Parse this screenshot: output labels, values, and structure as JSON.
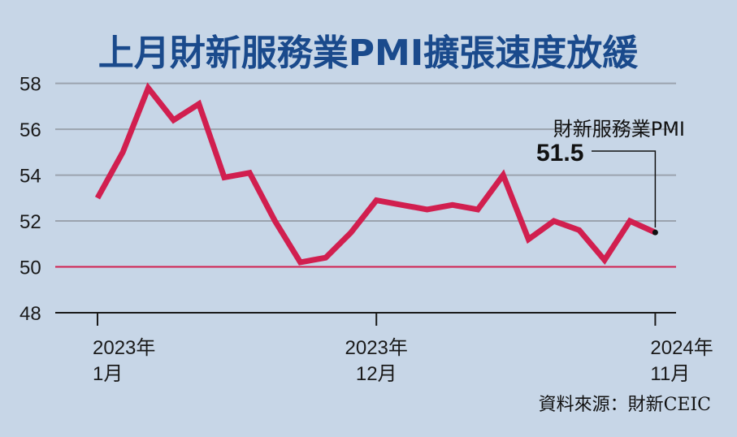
{
  "chart_data": {
    "type": "line",
    "title": "上月財新服務業PMI擴張速度放緩",
    "source": "資料來源：財新CEIC",
    "ylim": [
      48,
      59
    ],
    "yticks": [
      48,
      50,
      52,
      54,
      56,
      58
    ],
    "grid": true,
    "reference_line": 50,
    "x_tick_labels": [
      {
        "index": 0,
        "line1": "2023年",
        "line2": "1月"
      },
      {
        "index": 11,
        "line1": "2023年",
        "line2": "12月"
      },
      {
        "index": 22,
        "line1": "2024年",
        "line2": "11月"
      }
    ],
    "series": [
      {
        "name": "財新服務業PMI",
        "values": [
          53.0,
          55.0,
          57.8,
          56.4,
          57.1,
          53.9,
          54.1,
          52.0,
          50.2,
          50.4,
          51.5,
          52.9,
          52.7,
          52.5,
          52.7,
          52.5,
          54.0,
          51.2,
          52.0,
          51.6,
          50.3,
          52.0,
          51.5
        ]
      }
    ],
    "annotation": {
      "label": "財新服務業PMI",
      "value": "51.5"
    },
    "colors": {
      "line": "#d11f4f",
      "reference": "#d11f4f",
      "grid": "#9ba3ae",
      "background": "#c7d6e7",
      "title": "#1a4a8c"
    }
  }
}
